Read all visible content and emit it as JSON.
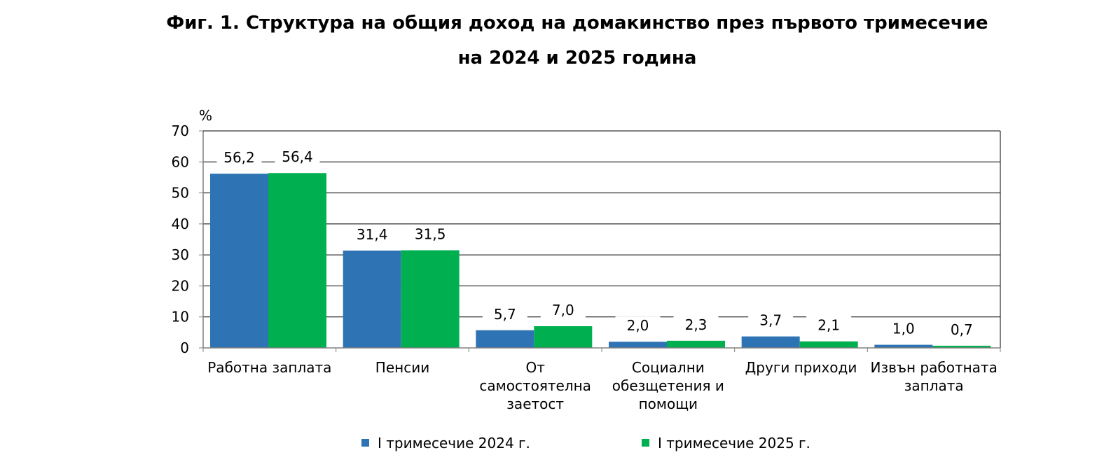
{
  "chart_data": {
    "type": "bar",
    "title": "Фиг. 1. Структура на общия доход на домакинство през първото тримесечие",
    "title_line2": "на 2024 и 2025 година",
    "ylabel": "%",
    "ylim": [
      0,
      70
    ],
    "yticks": [
      "0",
      "10",
      "20",
      "30",
      "40",
      "50",
      "60",
      "70"
    ],
    "grid": true,
    "legend_position": "bottom",
    "categories": [
      [
        "Работна заплата"
      ],
      [
        "Пенсии"
      ],
      [
        "От",
        "самостоятелна",
        "заетост"
      ],
      [
        "Социални",
        "обезщетения и",
        "помощи"
      ],
      [
        "Други приходи"
      ],
      [
        "Извън работната",
        "заплата"
      ]
    ],
    "series": [
      {
        "name": "I тримесечие 2024 г.",
        "color": "#2E74B5",
        "values": [
          56.2,
          31.4,
          5.7,
          2.0,
          3.7,
          1.0
        ],
        "labels": [
          "56,2",
          "31,4",
          "5,7",
          "2,0",
          "3,7",
          "1,0"
        ]
      },
      {
        "name": "I тримесечие 2025 г.",
        "color": "#00B050",
        "values": [
          56.4,
          31.5,
          7.0,
          2.3,
          2.1,
          0.7
        ],
        "labels": [
          "56,4",
          "31,5",
          "7,0",
          "2,3",
          "2,1",
          "0,7"
        ]
      }
    ]
  }
}
